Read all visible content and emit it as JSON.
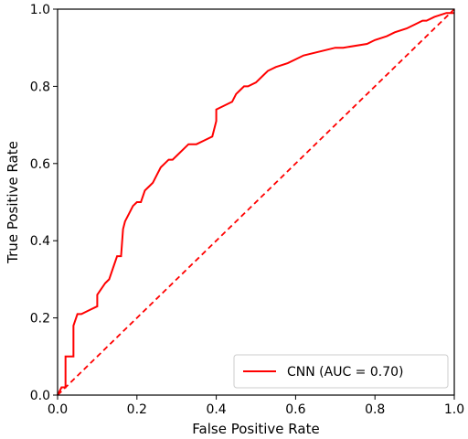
{
  "chart_data": {
    "type": "line",
    "title": "",
    "xlabel": "False Positive Rate",
    "ylabel": "True Positive Rate",
    "xlim": [
      0.0,
      1.0
    ],
    "ylim": [
      0.0,
      1.0
    ],
    "xticks": [
      "0.0",
      "0.2",
      "0.4",
      "0.6",
      "0.8",
      "1.0"
    ],
    "yticks": [
      "0.0",
      "0.2",
      "0.4",
      "0.6",
      "0.8",
      "1.0"
    ],
    "grid": false,
    "legend_position": "lower-right",
    "series": [
      {
        "name": "CNN (AUC = 0.70)",
        "color": "#ff0000",
        "style": "solid",
        "x": [
          0.0,
          0.01,
          0.02,
          0.02,
          0.04,
          0.04,
          0.05,
          0.06,
          0.08,
          0.1,
          0.1,
          0.12,
          0.13,
          0.14,
          0.15,
          0.16,
          0.165,
          0.17,
          0.18,
          0.19,
          0.2,
          0.21,
          0.22,
          0.23,
          0.24,
          0.25,
          0.26,
          0.27,
          0.28,
          0.29,
          0.3,
          0.32,
          0.33,
          0.35,
          0.37,
          0.39,
          0.4,
          0.4,
          0.42,
          0.44,
          0.45,
          0.46,
          0.47,
          0.48,
          0.5,
          0.52,
          0.53,
          0.55,
          0.58,
          0.6,
          0.62,
          0.66,
          0.7,
          0.72,
          0.78,
          0.8,
          0.83,
          0.85,
          0.88,
          0.9,
          0.92,
          0.93,
          0.95,
          0.98,
          1.0
        ],
        "y": [
          0.0,
          0.02,
          0.02,
          0.1,
          0.1,
          0.18,
          0.21,
          0.21,
          0.22,
          0.23,
          0.26,
          0.29,
          0.3,
          0.33,
          0.36,
          0.36,
          0.43,
          0.45,
          0.47,
          0.49,
          0.5,
          0.5,
          0.53,
          0.54,
          0.55,
          0.57,
          0.59,
          0.6,
          0.61,
          0.61,
          0.62,
          0.64,
          0.65,
          0.65,
          0.66,
          0.67,
          0.71,
          0.74,
          0.75,
          0.76,
          0.78,
          0.79,
          0.8,
          0.8,
          0.81,
          0.83,
          0.84,
          0.85,
          0.86,
          0.87,
          0.88,
          0.89,
          0.9,
          0.9,
          0.91,
          0.92,
          0.93,
          0.94,
          0.95,
          0.96,
          0.97,
          0.97,
          0.98,
          0.99,
          0.99
        ]
      },
      {
        "name": "",
        "color": "#ff0000",
        "style": "dashed",
        "x": [
          0.0,
          1.0
        ],
        "y": [
          0.0,
          1.0
        ]
      }
    ]
  }
}
